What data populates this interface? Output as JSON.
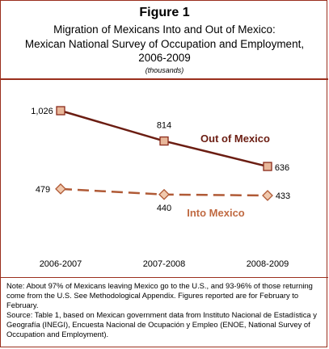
{
  "figure_label": "Figure 1",
  "title_line1": "Migration of Mexicans Into and Out of Mexico:",
  "title_line2": "Mexican National Survey of Occupation and Employment,",
  "title_line3": "2006-2009",
  "units": "(thousands)",
  "note": "Note:  About 97% of Mexicans leaving Mexico go to the U.S., and 93-96% of those returning come from the U.S. See Methodological Appendix. Figures reported are for February to February.",
  "source": "Source: Table 1, based on Mexican government data from Instituto Nacional de Estadística y Geografía (INEGI), Encuesta Nacional de Ocupación y Empleo (ENOE, National Survey of Occupation and Employment).",
  "colors": {
    "out_line": "#6b1d12",
    "out_marker_fill": "#e8b79a",
    "out_marker_stroke": "#8a2a1a",
    "into_line": "#b05a36",
    "into_marker_fill": "#f0c9ae",
    "into_marker_stroke": "#b05a36",
    "out_label": "#6b1d12",
    "into_label": "#c06a42",
    "frame": "#9a2f1d"
  },
  "chart_data": {
    "type": "line",
    "categories": [
      "2006-2007",
      "2007-2008",
      "2008-2009"
    ],
    "series": [
      {
        "name": "Out of Mexico",
        "values": [
          1026,
          814,
          636
        ],
        "labels": [
          "1,026",
          "814",
          "636"
        ],
        "marker": "square",
        "style": "solid"
      },
      {
        "name": "Into Mexico",
        "values": [
          479,
          440,
          433
        ],
        "labels": [
          "479",
          "440",
          "433"
        ],
        "marker": "diamond",
        "style": "dashed"
      }
    ],
    "ylim": [
      0,
      1100
    ],
    "grid": false
  }
}
